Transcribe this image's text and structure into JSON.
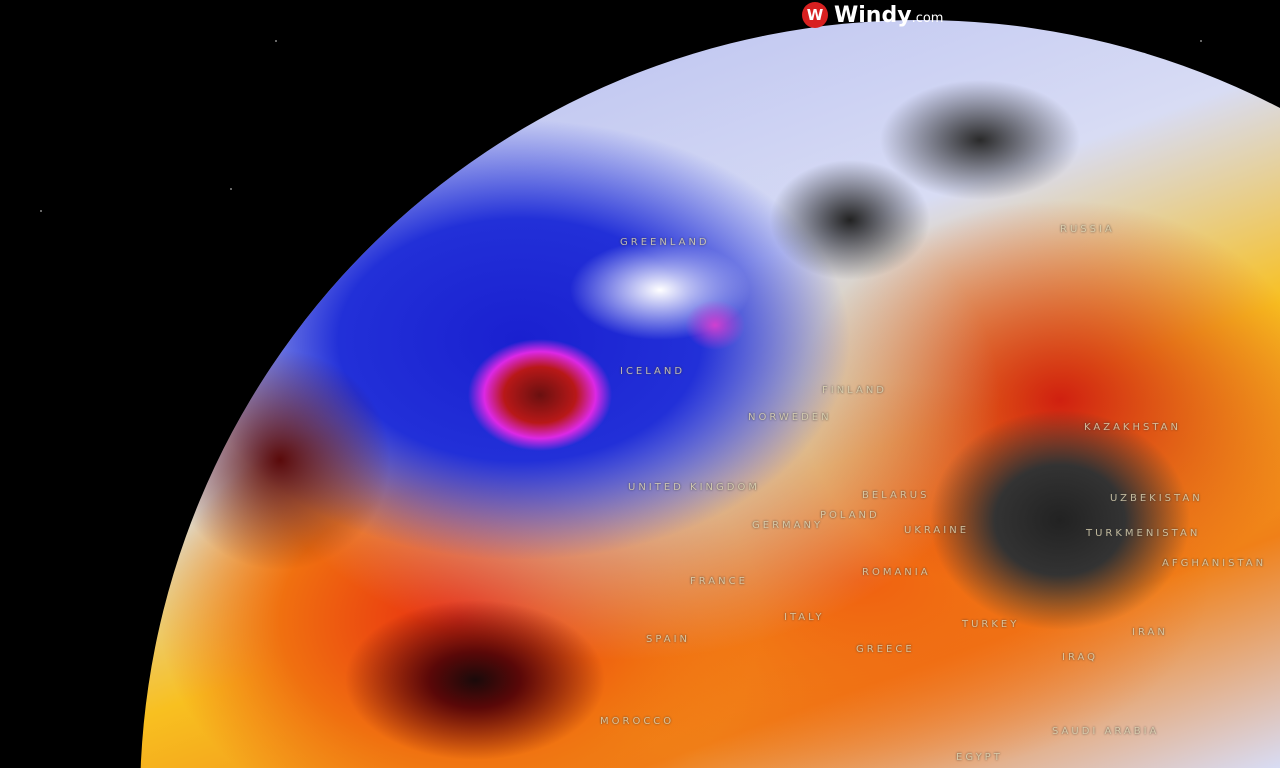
{
  "brand": {
    "name": "Windy",
    "suffix": ".com",
    "icon": "windy-logo-icon"
  },
  "map": {
    "labels": [
      "GREENLAND",
      "ICELAND",
      "FINLAND",
      "NORWEDEN",
      "UNITED KINGDOM",
      "GERMANY",
      "POLAND",
      "BELARUS",
      "UKRAINE",
      "ROMANIA",
      "RUSSIA",
      "KAZAKHSTAN",
      "UZBEKISTAN",
      "TURKMENISTAN",
      "AFGHANISTAN",
      "TURKEY",
      "IRAN",
      "IRAQ",
      "GREECE",
      "ITALY",
      "SPAIN",
      "FRANCE",
      "MOROCCO",
      "SAUDI ARABIA",
      "EGYPT"
    ],
    "colors": {
      "cold": "#2230d8",
      "low_pressure": "#e028e0",
      "warm": "#f07010",
      "hot": "#c81818",
      "extreme": "#2a2a2a"
    }
  }
}
